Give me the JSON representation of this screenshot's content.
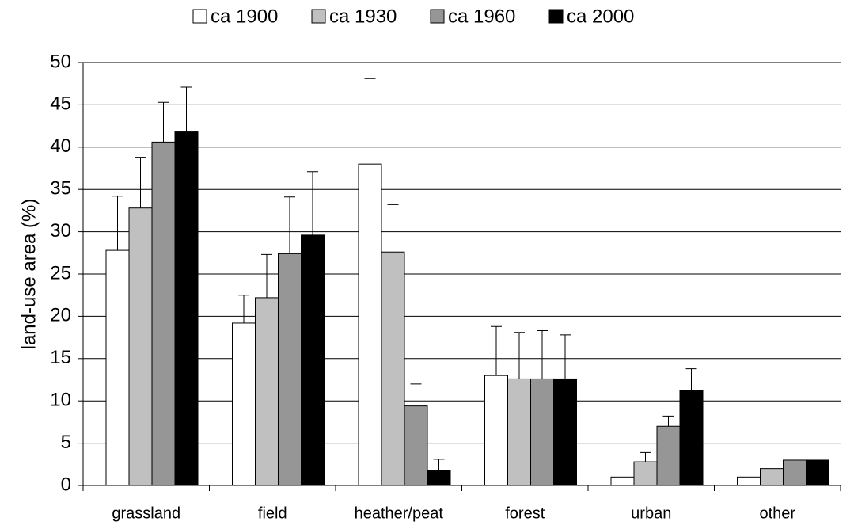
{
  "chart_data": {
    "type": "bar",
    "y_label": "land-use area (%)",
    "categories": [
      "grassland",
      "field",
      "heather/peat",
      "forest",
      "urban",
      "other"
    ],
    "series": [
      {
        "name": "ca 1900",
        "color": "#ffffff",
        "values": [
          27.8,
          19.2,
          38.0,
          13.0,
          1.0,
          1.0
        ],
        "errors": [
          6.4,
          3.3,
          10.1,
          5.8,
          null,
          null
        ]
      },
      {
        "name": "ca 1930",
        "color": "#c0c0c0",
        "values": [
          32.8,
          22.2,
          27.6,
          12.6,
          2.8,
          2.0
        ],
        "errors": [
          6.0,
          5.1,
          5.6,
          5.5,
          1.1,
          null
        ]
      },
      {
        "name": "ca 1960",
        "color": "#969696",
        "values": [
          40.6,
          27.4,
          9.4,
          12.6,
          7.0,
          3.0
        ],
        "errors": [
          4.7,
          6.7,
          2.6,
          5.7,
          1.2,
          null
        ]
      },
      {
        "name": "ca 2000",
        "color": "#000000",
        "values": [
          41.8,
          29.6,
          1.8,
          12.6,
          11.2,
          3.0
        ],
        "errors": [
          5.3,
          7.5,
          1.3,
          5.2,
          2.6,
          null
        ]
      }
    ],
    "ylim": [
      0,
      50
    ],
    "yticks": [
      0,
      5,
      10,
      15,
      20,
      25,
      30,
      35,
      40,
      45,
      50
    ],
    "grid": true,
    "legend": "top"
  }
}
